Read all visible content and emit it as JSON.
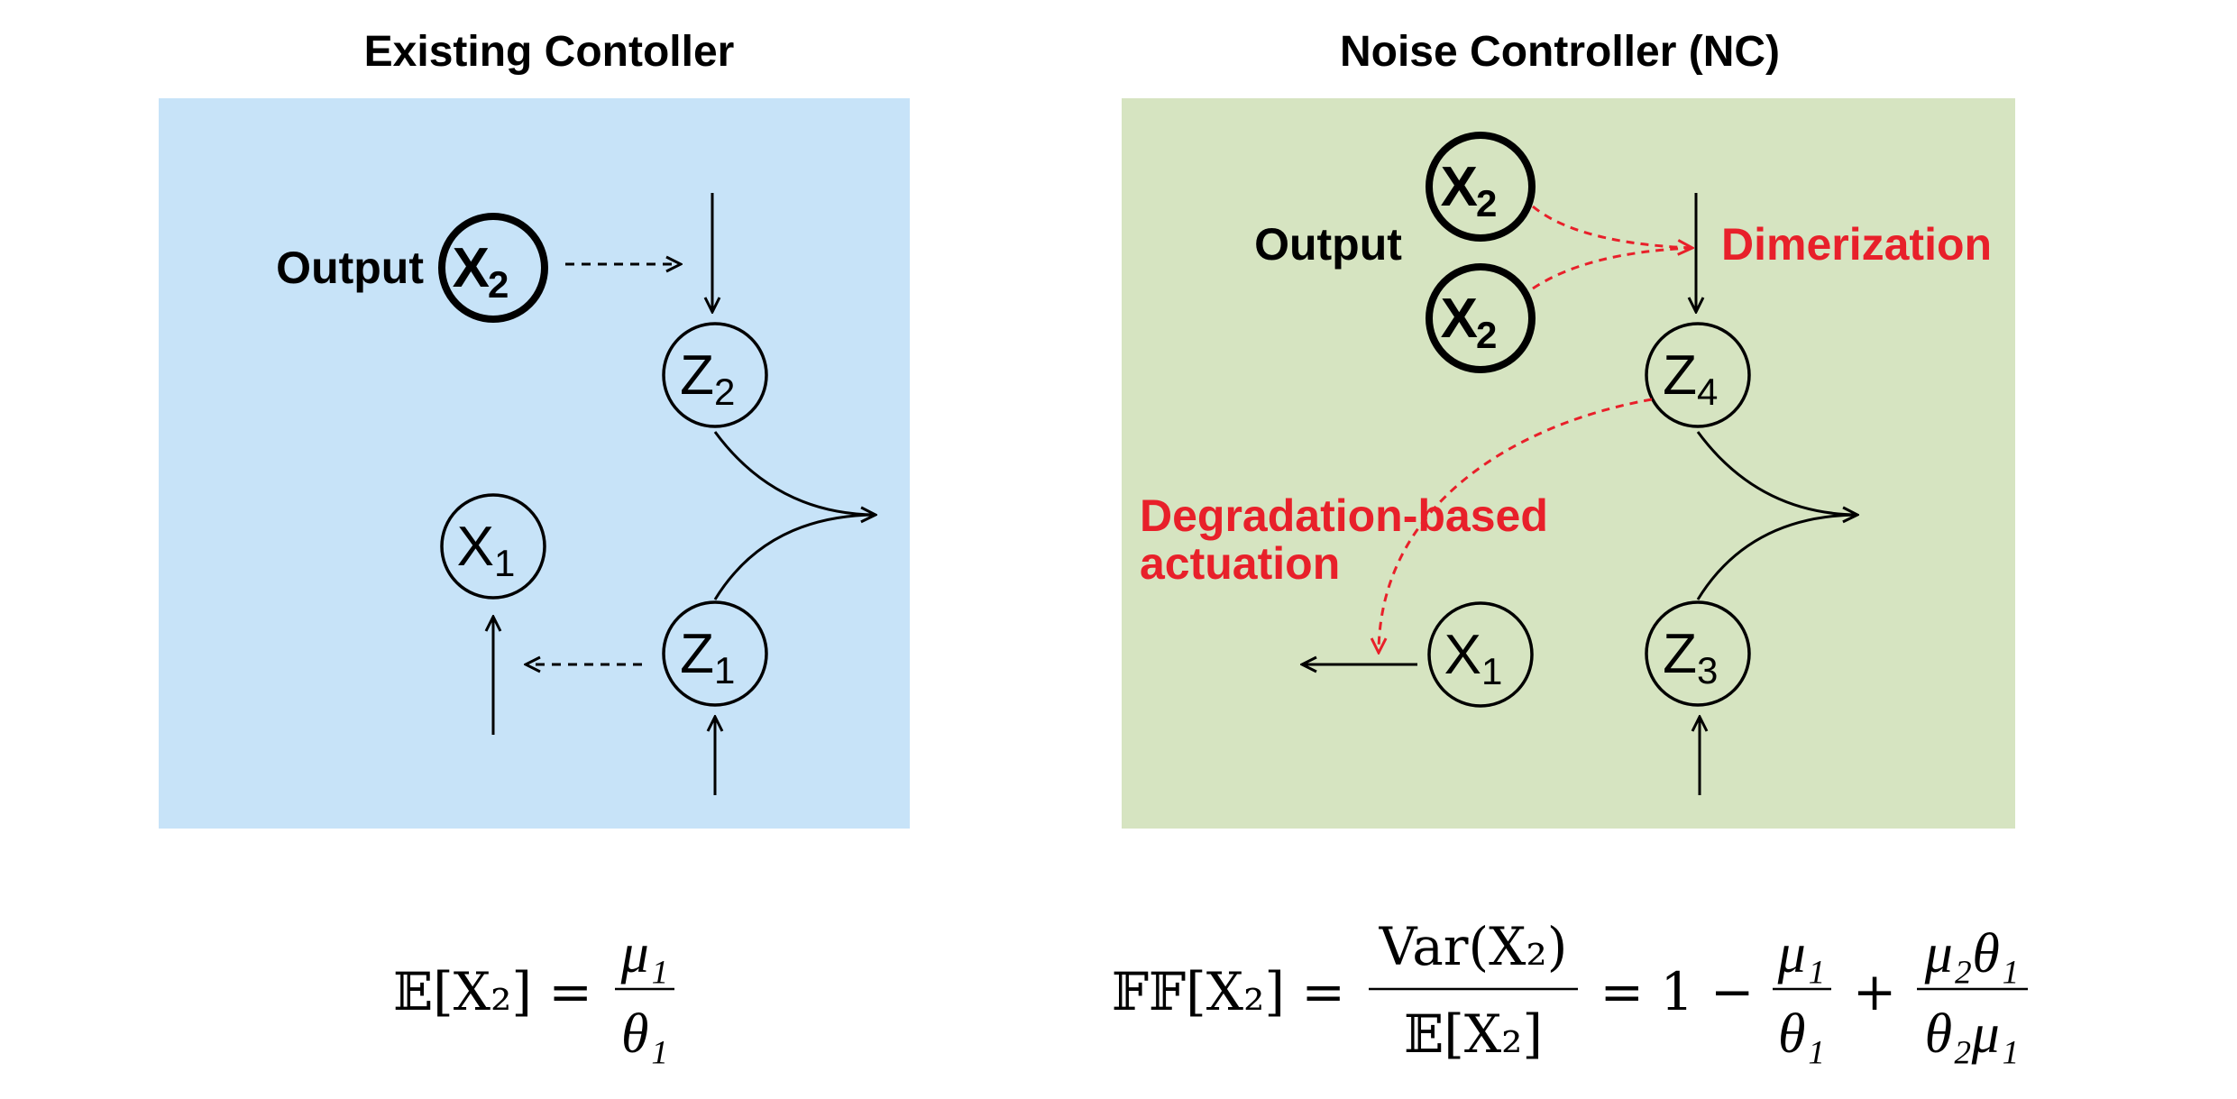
{
  "colors": {
    "left_panel": "#c7e3f8",
    "right_panel": "#d6e4c1",
    "highlight": "#e8202a"
  },
  "left": {
    "title": "Existing Contoller",
    "output_label": "Output",
    "nodes": {
      "x2": {
        "main": "X",
        "sub": "2"
      },
      "z2": {
        "main": "Z",
        "sub": "2"
      },
      "x1": {
        "main": "X",
        "sub": "1"
      },
      "z1": {
        "main": "Z",
        "sub": "1"
      }
    },
    "formula": {
      "lhs": "𝔼[X₂] =",
      "num": "μ₁",
      "den": "θ₁"
    }
  },
  "right": {
    "title": "Noise Controller (NC)",
    "output_label": "Output",
    "dimerization_label": "Dimerization",
    "degradation_label_line1": "Degradation-based",
    "degradation_label_line2": "actuation",
    "nodes": {
      "x2a": {
        "main": "X",
        "sub": "2"
      },
      "x2b": {
        "main": "X",
        "sub": "2"
      },
      "z4": {
        "main": "Z",
        "sub": "4"
      },
      "x1": {
        "main": "X",
        "sub": "1"
      },
      "z3": {
        "main": "Z",
        "sub": "3"
      }
    },
    "formula": {
      "lhs": "𝔽𝔽[X₂] =",
      "frac1_num": "Var(X₂)",
      "frac1_den": "𝔼[X₂]",
      "mid": "= 1 −",
      "frac2_num": "μ₁",
      "frac2_den": "θ₁",
      "plus": "+",
      "frac3_num": "μ₂θ₁",
      "frac3_den": "θ₂μ₁"
    }
  }
}
